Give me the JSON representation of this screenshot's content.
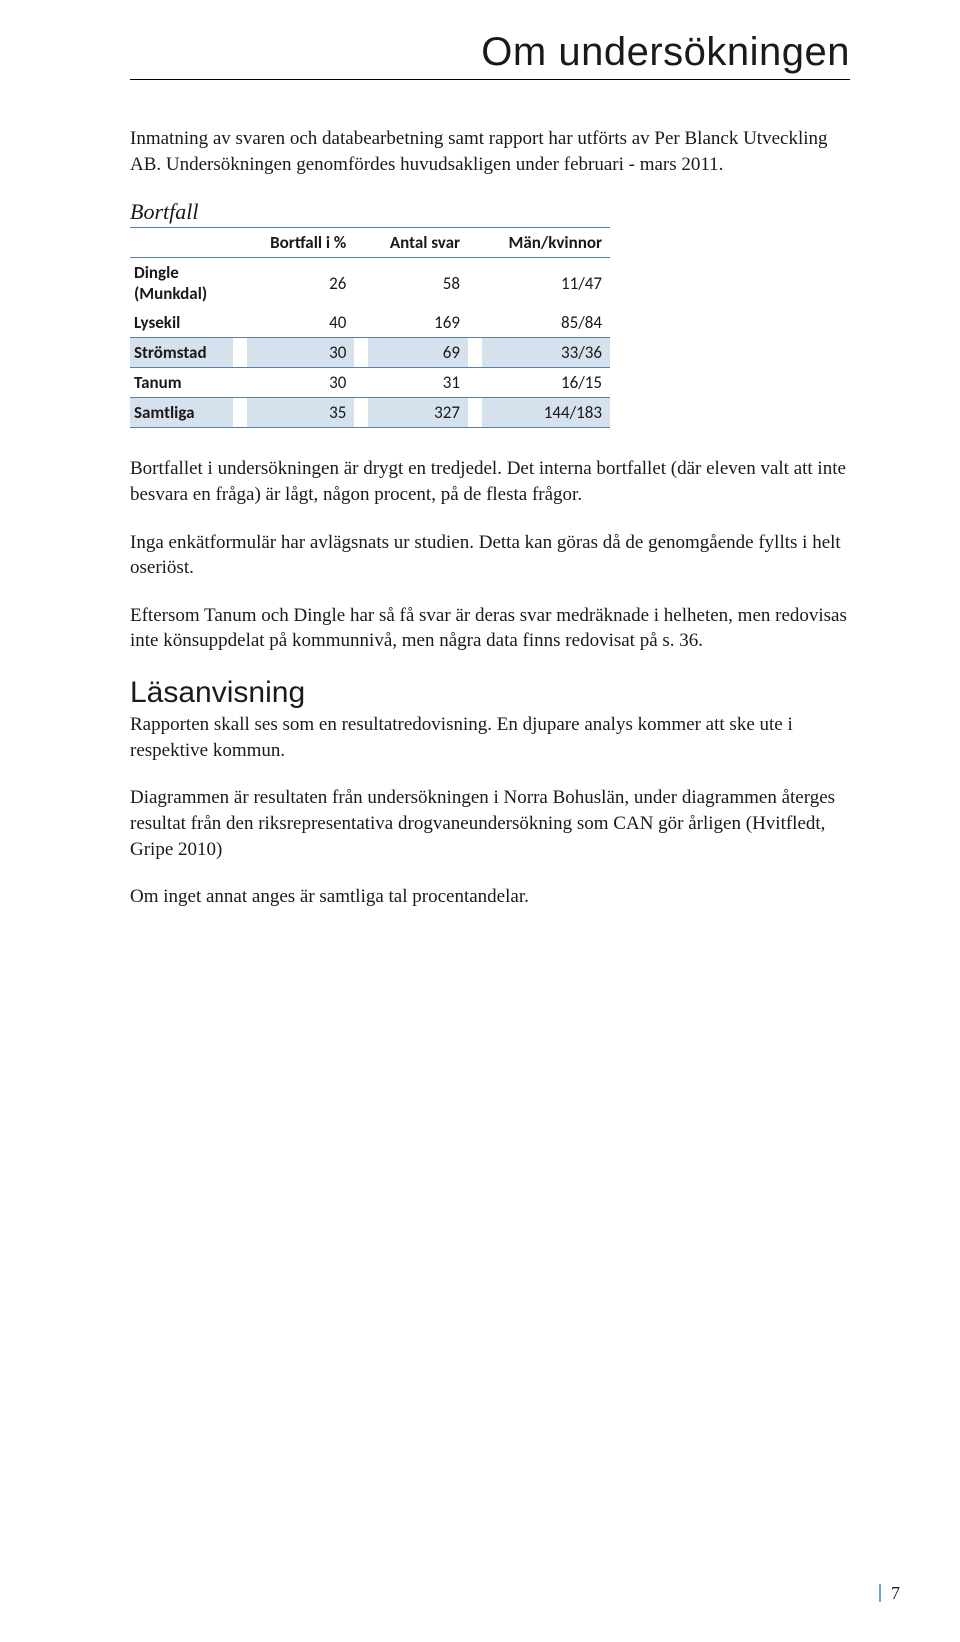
{
  "page": {
    "title": "Om undersökningen",
    "intro": "Inmatning av svaren och databearbetning samt rapport har utförts av Per Blanck Utveckling AB. Undersökningen genomfördes huvudsakligen under februari - mars 2011.",
    "bortfall_heading": "Bortfall",
    "table": {
      "columns": [
        "",
        "Bortfall i %",
        "Antal svar",
        "Män/kvinnor"
      ],
      "rows": [
        {
          "label": "Dingle (Munkdal)",
          "pct": "26",
          "n": "58",
          "mk": "11/47",
          "band": false
        },
        {
          "label": "Lysekil",
          "pct": "40",
          "n": "169",
          "mk": "85/84",
          "band": false
        },
        {
          "label": "Strömstad",
          "pct": "30",
          "n": "69",
          "mk": "33/36",
          "band": true
        },
        {
          "label": "Tanum",
          "pct": "30",
          "n": "31",
          "mk": "16/15",
          "band": false
        },
        {
          "label": "Samtliga",
          "pct": "35",
          "n": "327",
          "mk": "144/183",
          "band": true
        }
      ],
      "header_bg": "#ffffff",
      "band_bg": "#d6e1ee",
      "border_color": "#5b7fa6",
      "font_family": "Calibri",
      "font_size_pt": 13
    },
    "para_bortfallet": "Bortfallet i undersökningen är drygt en tredjedel. Det interna bortfallet (där eleven valt att inte besvara en fråga) är lågt, någon procent, på de flesta frågor.",
    "para_enkat": "Inga enkätformulär har avlägsnats ur studien. Detta kan göras då de genomgående fyllts i helt oseriöst.",
    "para_tanum": "Eftersom Tanum och Dingle har så få svar är deras svar medräknade i helheten, men redovisas inte könsuppdelat på kommunnivå, men några data finns redovisat på s. 36.",
    "lasanvisning_heading": "Läsanvisning",
    "para_las1": "Rapporten skall ses som en resultatredovisning. En djupare analys kommer att ske ute i respektive kommun.",
    "para_las2": "Diagrammen är resultaten från undersökningen i Norra Bohuslän, under diagrammen återges resultat från den riksrepresentativa drogvaneundersökning som CAN gör årligen (Hvitfledt, Gripe 2010)",
    "para_las3": "Om inget annat anges är samtliga tal procentandelar.",
    "page_number": "7"
  },
  "colors": {
    "text": "#1a1a1a",
    "page_bg": "#ffffff",
    "accent_line": "#7da2c9"
  }
}
